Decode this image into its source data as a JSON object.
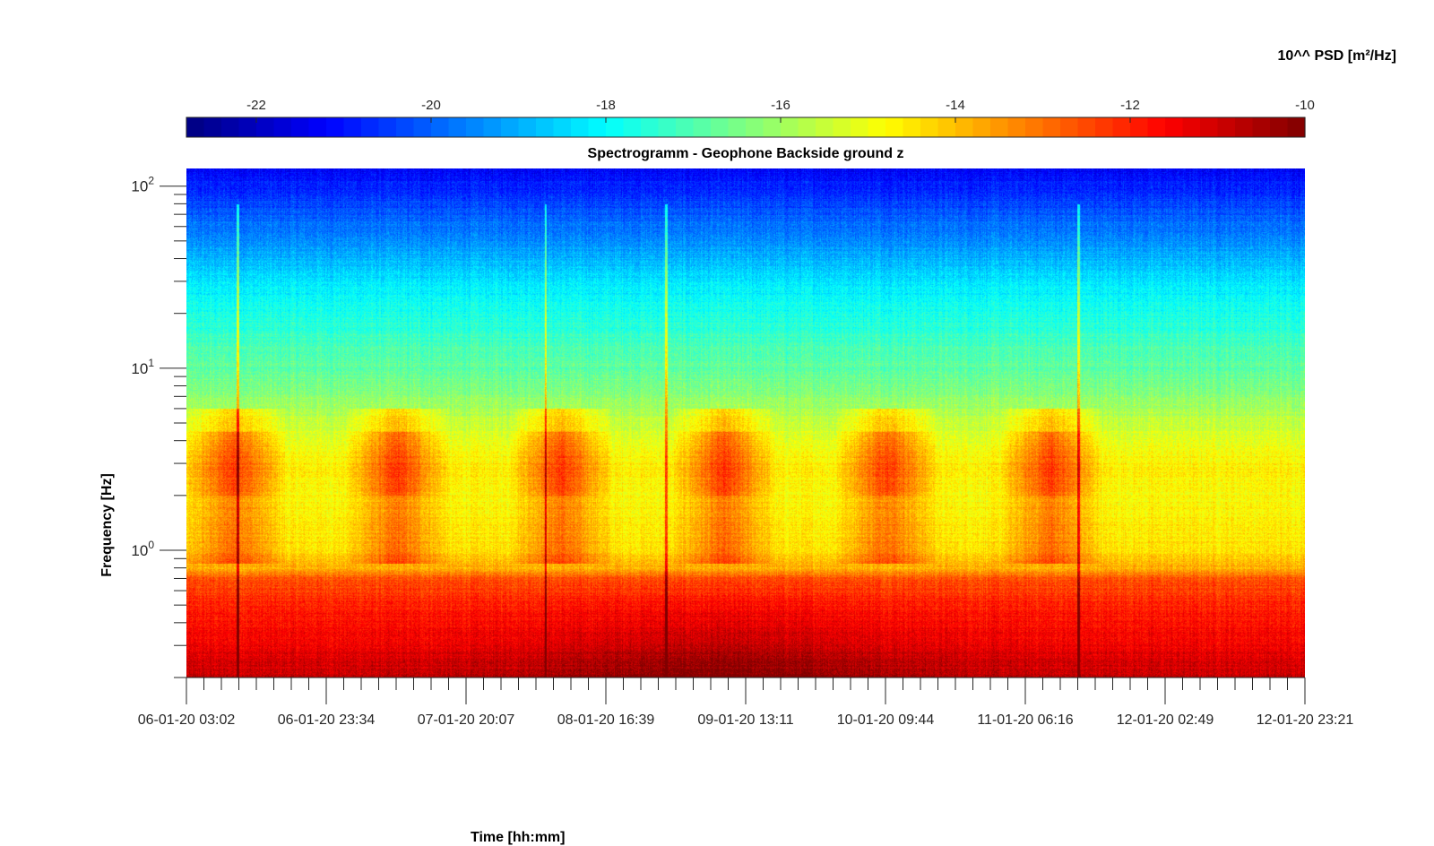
{
  "chart_data": {
    "type": "heatmap",
    "title": "Spectrogramm - Geophone Backside ground z",
    "xlabel": "Time [hh:mm]",
    "ylabel": "Frequency [Hz]",
    "colorbar": {
      "label": "10^^ PSD [m²/Hz]",
      "range": [
        -22.8,
        -10
      ],
      "ticks": [
        -22,
        -20,
        -18,
        -16,
        -14,
        -12,
        -10
      ],
      "colormap": "jet",
      "location": "top"
    },
    "x_ticks": [
      "06-01-20 03:02",
      "06-01-20 23:34",
      "07-01-20 20:07",
      "08-01-20 16:39",
      "09-01-20 13:11",
      "10-01-20 09:44",
      "11-01-20 06:16",
      "12-01-20 02:49",
      "12-01-20 23:21"
    ],
    "y_scale": "log",
    "y_range_hz": [
      0.2,
      125
    ],
    "y_ticks": [
      {
        "base": "10",
        "exp": "0",
        "value": 1
      },
      {
        "base": "10",
        "exp": "1",
        "value": 10
      },
      {
        "base": "10",
        "exp": "2",
        "value": 100
      }
    ],
    "frequency_profile": [
      {
        "hz": 0.2,
        "psd": -10.9
      },
      {
        "hz": 0.3,
        "psd": -11.4
      },
      {
        "hz": 0.5,
        "psd": -12.0
      },
      {
        "hz": 0.7,
        "psd": -12.6
      },
      {
        "hz": 0.8,
        "psd": -13.8
      },
      {
        "hz": 1.0,
        "psd": -14.4
      },
      {
        "hz": 2.0,
        "psd": -14.8
      },
      {
        "hz": 3.0,
        "psd": -14.6
      },
      {
        "hz": 5.0,
        "psd": -15.5
      },
      {
        "hz": 8.0,
        "psd": -16.5
      },
      {
        "hz": 15.0,
        "psd": -17.3
      },
      {
        "hz": 30.0,
        "psd": -18.3
      },
      {
        "hz": 60.0,
        "psd": -19.8
      },
      {
        "hz": 125.0,
        "psd": -21.2
      }
    ],
    "daily_activity_peaks_x": [
      "06-01-20 10:00",
      "07-01-20 10:00",
      "08-01-20 10:00",
      "09-01-20 10:00",
      "10-01-20 10:00",
      "11-01-20 10:00"
    ],
    "transient_events_x": [
      "06-01-20 10:30",
      "08-01-20 07:45",
      "09-01-20 01:30",
      "11-01-20 14:00"
    ],
    "grid": false
  }
}
